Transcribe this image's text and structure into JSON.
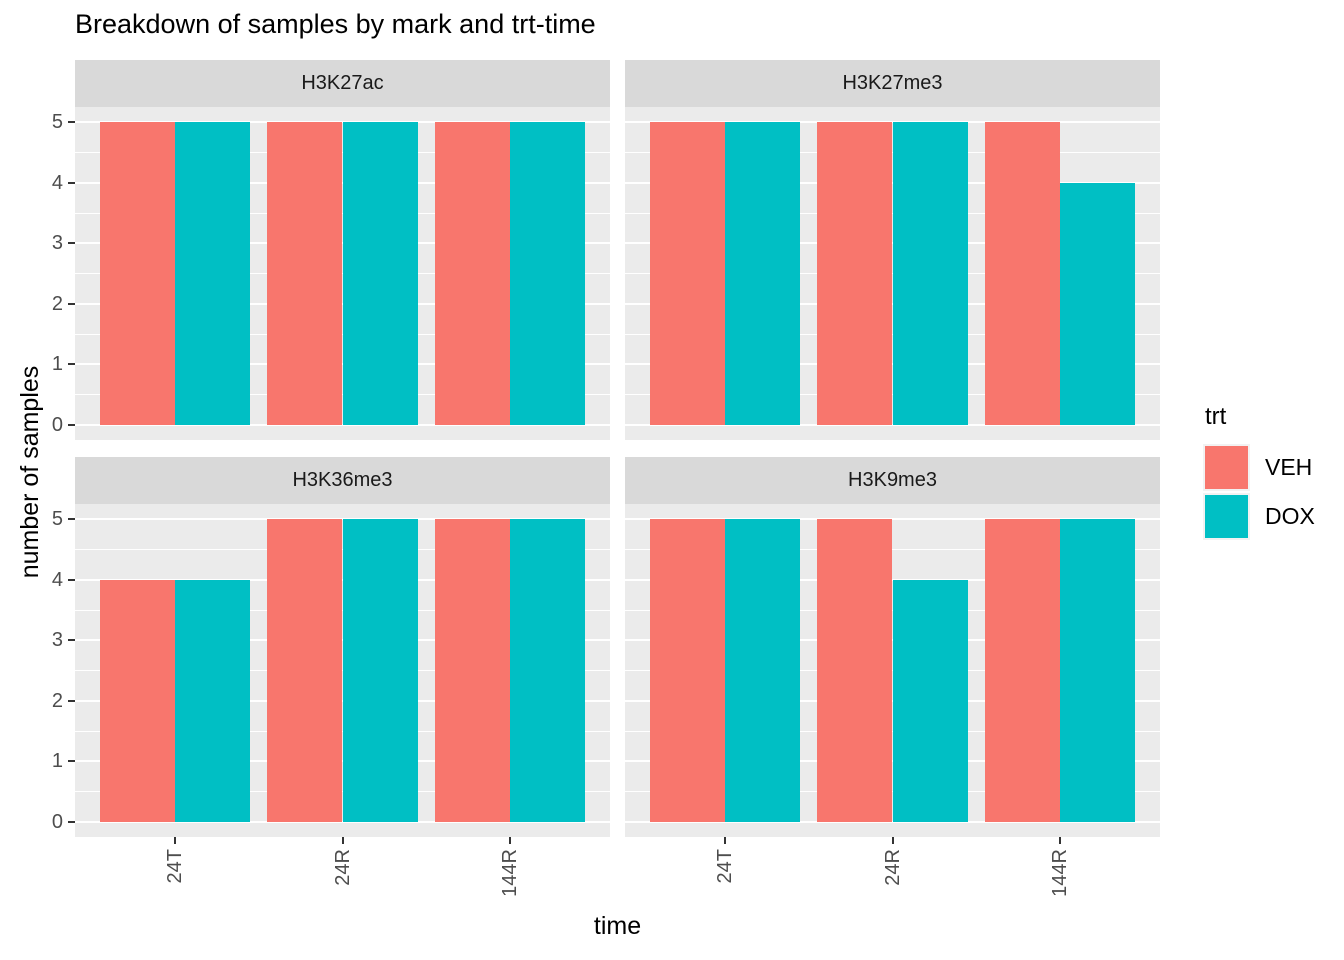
{
  "title": "Breakdown of samples by mark and trt-time",
  "chart_data": {
    "type": "bar",
    "grouping": "dodge",
    "facet_layout": "2x2",
    "categories": [
      "24T",
      "24R",
      "144R"
    ],
    "series_names": [
      "VEH",
      "DOX"
    ],
    "series_colors": {
      "VEH": "#F8766D",
      "DOX": "#00BFC4"
    },
    "facets": [
      {
        "label": "H3K27ac",
        "series": [
          {
            "name": "VEH",
            "values": [
              5,
              5,
              5
            ]
          },
          {
            "name": "DOX",
            "values": [
              5,
              5,
              5
            ]
          }
        ]
      },
      {
        "label": "H3K27me3",
        "series": [
          {
            "name": "VEH",
            "values": [
              5,
              5,
              5
            ]
          },
          {
            "name": "DOX",
            "values": [
              5,
              5,
              4
            ]
          }
        ]
      },
      {
        "label": "H3K36me3",
        "series": [
          {
            "name": "VEH",
            "values": [
              4,
              5,
              5
            ]
          },
          {
            "name": "DOX",
            "values": [
              4,
              5,
              5
            ]
          }
        ]
      },
      {
        "label": "H3K9me3",
        "series": [
          {
            "name": "VEH",
            "values": [
              5,
              5,
              5
            ]
          },
          {
            "name": "DOX",
            "values": [
              5,
              4,
              5
            ]
          }
        ]
      }
    ],
    "xlabel": "time",
    "ylabel": "number of samples",
    "y_ticks": [
      0,
      1,
      2,
      3,
      4,
      5
    ],
    "ylim": [
      0,
      5
    ],
    "grid": true,
    "legend": {
      "title": "trt",
      "position": "right",
      "entries": [
        {
          "label": "VEH",
          "color": "#F8766D"
        },
        {
          "label": "DOX",
          "color": "#00BFC4"
        }
      ]
    }
  },
  "colors": {
    "panel_bg": "#EBEBEB",
    "strip_bg": "#D9D9D9",
    "gridline": "#FFFFFF",
    "axis_text": "#4D4D4D",
    "tick_mark": "#333333",
    "legend_key_bg": "#F2F2F2",
    "veh": "#F8766D",
    "dox": "#00BFC4"
  }
}
